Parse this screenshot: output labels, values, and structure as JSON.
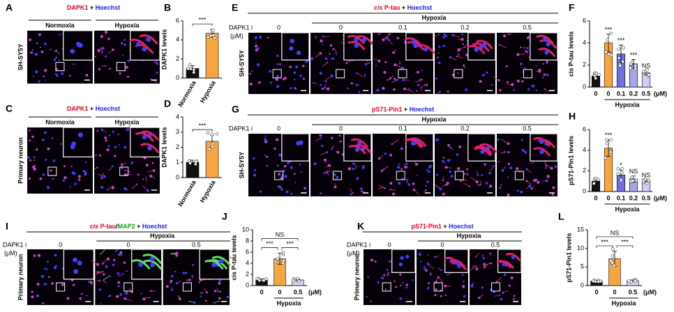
{
  "figure": {
    "panels": [
      {
        "letter": "A",
        "title": [
          {
            "text": "DAPK1",
            "color": "#e8001c"
          },
          {
            "text": " + ",
            "color": "#000000"
          },
          {
            "text": "Hoechst",
            "color": "#1a1aff"
          }
        ],
        "columns": [
          "Normoxia",
          "Hypoxia"
        ],
        "side_label": "SH-SY5Y"
      },
      {
        "letter": "C",
        "title": [
          {
            "text": "DAPK1",
            "color": "#e8001c"
          },
          {
            "text": " + ",
            "color": "#000000"
          },
          {
            "text": "Hoechst",
            "color": "#1a1aff"
          }
        ],
        "columns": [
          "Normoxia",
          "Hypoxia"
        ],
        "side_label": "Primary neuron"
      },
      {
        "letter": "E",
        "title": [
          {
            "text": "cis",
            "color": "#e8001c"
          },
          {
            "text": " P-tau",
            "color": "#e8001c"
          },
          {
            "text": " + ",
            "color": "#000000"
          },
          {
            "text": "Hoechst",
            "color": "#1a1aff"
          }
        ],
        "dose_label": "DAPK1 i",
        "dose_unit": "(μM)",
        "group": "Hypoxia",
        "columns": [
          "0",
          "0",
          "0.1",
          "0.2",
          "0.5"
        ],
        "side_label": "SH-SY5Y"
      },
      {
        "letter": "G",
        "title": [
          {
            "text": "pS71-Pin1",
            "color": "#e8001c"
          },
          {
            "text": " + ",
            "color": "#000000"
          },
          {
            "text": "Hoechst",
            "color": "#1a1aff"
          }
        ],
        "dose_label": "DAPK1 i",
        "group": "Hypoxia",
        "columns": [
          "0",
          "0",
          "0.1",
          "0.2",
          "0.5"
        ],
        "side_label": "SH-SY5Y"
      },
      {
        "letter": "I",
        "title": [
          {
            "text": "cis",
            "color": "#e8001c"
          },
          {
            "text": " P-tau",
            "color": "#e8001c"
          },
          {
            "text": "/",
            "color": "#000000"
          },
          {
            "text": "MAP2",
            "color": "#10a010"
          },
          {
            "text": " + ",
            "color": "#000000"
          },
          {
            "text": "Hoechst",
            "color": "#1a1aff"
          }
        ],
        "dose_label": "DAPK1 i",
        "dose_unit": "(μM)",
        "group": "Hypoxia",
        "columns": [
          "0",
          "0",
          "0.5"
        ],
        "side_label": "Primary neuron"
      },
      {
        "letter": "K",
        "title": [
          {
            "text": "pS71-Pin1",
            "color": "#e8001c"
          },
          {
            "text": " + ",
            "color": "#000000"
          },
          {
            "text": "Hoechst",
            "color": "#1a1aff"
          }
        ],
        "dose_label": "DAPK1 i",
        "dose_unit": "(μM)",
        "group": "Hypoxia",
        "columns": [
          "0",
          "0",
          "0.5"
        ],
        "side_label": "Primary neuron"
      }
    ]
  },
  "chart_data": [
    {
      "type": "bar",
      "letter": "B",
      "ylabel": "DAPK1 levels",
      "categories": [
        "Normoxia",
        "Hypoxia"
      ],
      "values": [
        1.0,
        4.7
      ],
      "errors": [
        0.3,
        0.4
      ],
      "colors": [
        "#111111",
        "#f7a541"
      ],
      "ylim": [
        0,
        6
      ],
      "yticks": [
        0,
        2,
        4,
        6
      ],
      "significance": [
        "***"
      ]
    },
    {
      "type": "bar",
      "letter": "D",
      "ylabel": "DAPK1 levels",
      "categories": [
        "Normoxia",
        "Hypoxia"
      ],
      "values": [
        1.0,
        2.4
      ],
      "errors": [
        0.15,
        0.4
      ],
      "colors": [
        "#111111",
        "#f7a541"
      ],
      "ylim": [
        0,
        4
      ],
      "yticks": [
        0,
        1,
        2,
        3,
        4
      ],
      "significance": [
        "***"
      ]
    },
    {
      "type": "bar",
      "letter": "F",
      "ylabel": "cis P-tau levels",
      "categories": [
        "0",
        "0",
        "0.1",
        "0.2",
        "0.5"
      ],
      "group": "Hypoxia",
      "unit": "(μM)",
      "values": [
        1.0,
        4.0,
        3.0,
        2.1,
        1.3
      ],
      "errors": [
        0.2,
        0.8,
        0.8,
        0.4,
        0.2
      ],
      "colors": [
        "#111111",
        "#f7a541",
        "#6f6fe0",
        "#a5a5ec",
        "#cfcff6"
      ],
      "ylim": [
        0,
        6
      ],
      "yticks": [
        0,
        2,
        4,
        6
      ],
      "bar_labels": [
        null,
        "***",
        "***",
        "***",
        "NS"
      ]
    },
    {
      "type": "bar",
      "letter": "H",
      "ylabel": "pS71-Pin1 levels",
      "categories": [
        "0",
        "0",
        "0.1",
        "0.2",
        "0.5"
      ],
      "group": "Hypoxia",
      "unit": "(μM)",
      "values": [
        1.0,
        4.2,
        1.6,
        1.2,
        1.0
      ],
      "errors": [
        0.2,
        0.8,
        0.5,
        0.3,
        0.15
      ],
      "colors": [
        "#111111",
        "#f7a541",
        "#6f6fe0",
        "#a5a5ec",
        "#cfcff6"
      ],
      "ylim": [
        0,
        6
      ],
      "yticks": [
        0,
        2,
        4,
        6
      ],
      "bar_labels": [
        null,
        "***",
        "*",
        "NS",
        "NS"
      ]
    },
    {
      "type": "bar",
      "letter": "J",
      "ylabel": "cis P-tau levels",
      "categories": [
        "0",
        "0",
        "0.5"
      ],
      "group": "Hypoxia",
      "unit": "(μM)",
      "values": [
        1.0,
        4.8,
        1.0
      ],
      "errors": [
        0.2,
        1.0,
        0.2
      ],
      "colors": [
        "#111111",
        "#f7a541",
        "#cfcff6"
      ],
      "ylim": [
        0,
        10
      ],
      "yticks": [
        0,
        2,
        4,
        6,
        8,
        10
      ],
      "significance": [
        "***",
        "***",
        "NS"
      ]
    },
    {
      "type": "bar",
      "letter": "L",
      "ylabel": "pS71-Pin1 levels",
      "categories": [
        "0",
        "0",
        "0.5"
      ],
      "group": "Hypoxia",
      "unit": "(μM)",
      "values": [
        1.2,
        7.2,
        1.3
      ],
      "errors": [
        0.2,
        2.0,
        0.2
      ],
      "colors": [
        "#111111",
        "#f7a541",
        "#cfcff6"
      ],
      "ylim": [
        0,
        15
      ],
      "yticks": [
        0,
        5,
        10,
        15
      ],
      "significance": [
        "***",
        "***",
        "NS"
      ]
    }
  ]
}
